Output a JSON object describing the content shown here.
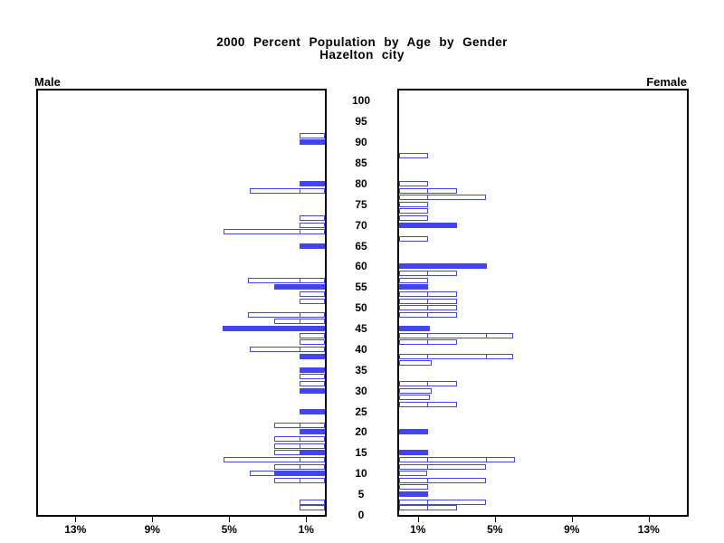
{
  "title": {
    "line1": "2000 Percent Population by Age by Gender",
    "line2": "Hazelton city"
  },
  "chart_data": {
    "type": "bar",
    "subtype": "population-pyramid",
    "title": "2000 Percent Population by Age by Gender",
    "subtitle": "Hazelton city",
    "left_panel_label": "Male",
    "right_panel_label": "Female",
    "age_axis": {
      "min": 0,
      "max": 100,
      "step": 5,
      "tick_labels": [
        "0",
        "5",
        "10",
        "15",
        "20",
        "25",
        "30",
        "35",
        "40",
        "45",
        "50",
        "55",
        "60",
        "65",
        "70",
        "75",
        "80",
        "85",
        "90",
        "95",
        "100"
      ]
    },
    "percent_axis": {
      "ticks": [
        1,
        5,
        9,
        13
      ],
      "tick_labels": [
        "1%",
        "5%",
        "9%",
        "13%"
      ],
      "max": 15
    },
    "colors": {
      "bar_blue": "#4444EE",
      "axis_black": "#000000",
      "background": "#FFFFFF"
    },
    "style_note": "solid = filled blue bar; outline = white bar with blue border; seg_marks = internal segment divider positions in percent",
    "bars": {
      "male": [
        {
          "age": 91.67,
          "pct": 1.3,
          "style": "outline"
        },
        {
          "age": 90.0,
          "pct": 1.3,
          "style": "solid"
        },
        {
          "age": 80.0,
          "pct": 1.3,
          "style": "solid"
        },
        {
          "age": 78.33,
          "pct": 3.9,
          "style": "outline",
          "seg_marks": [
            1.33
          ]
        },
        {
          "age": 71.67,
          "pct": 1.3,
          "style": "outline"
        },
        {
          "age": 70.0,
          "pct": 1.3,
          "style": "outline"
        },
        {
          "age": 68.33,
          "pct": 5.25,
          "style": "outline",
          "seg_marks": [
            1.33
          ]
        },
        {
          "age": 65.0,
          "pct": 1.3,
          "style": "solid"
        },
        {
          "age": 56.67,
          "pct": 4.0,
          "style": "outline",
          "seg_marks": [
            1.33
          ]
        },
        {
          "age": 55.0,
          "pct": 2.65,
          "style": "solid"
        },
        {
          "age": 53.33,
          "pct": 1.3,
          "style": "outline"
        },
        {
          "age": 51.67,
          "pct": 1.3,
          "style": "outline"
        },
        {
          "age": 48.33,
          "pct": 4.0,
          "style": "outline",
          "seg_marks": [
            1.33
          ]
        },
        {
          "age": 46.67,
          "pct": 2.65,
          "style": "outline",
          "seg_marks": [
            1.33
          ]
        },
        {
          "age": 45.0,
          "pct": 5.3,
          "style": "solid"
        },
        {
          "age": 43.33,
          "pct": 1.3,
          "style": "outline"
        },
        {
          "age": 41.67,
          "pct": 1.3,
          "style": "outline"
        },
        {
          "age": 40.0,
          "pct": 3.9,
          "style": "outline",
          "seg_marks": [
            1.33
          ]
        },
        {
          "age": 38.33,
          "pct": 1.3,
          "style": "solid"
        },
        {
          "age": 35.0,
          "pct": 1.3,
          "style": "solid"
        },
        {
          "age": 33.33,
          "pct": 1.3,
          "style": "outline"
        },
        {
          "age": 31.67,
          "pct": 1.3,
          "style": "outline"
        },
        {
          "age": 30.0,
          "pct": 1.3,
          "style": "solid"
        },
        {
          "age": 25.0,
          "pct": 1.3,
          "style": "solid"
        },
        {
          "age": 21.67,
          "pct": 2.65,
          "style": "outline",
          "seg_marks": [
            1.33
          ]
        },
        {
          "age": 20.0,
          "pct": 1.3,
          "style": "solid"
        },
        {
          "age": 18.33,
          "pct": 2.65,
          "style": "outline",
          "seg_marks": [
            1.33
          ]
        },
        {
          "age": 16.67,
          "pct": 2.65,
          "style": "outline",
          "seg_marks": [
            1.33
          ]
        },
        {
          "age": 15.0,
          "pct": 2.65,
          "style": "outline",
          "seg_marks": [
            1.33
          ]
        },
        {
          "age": 15.0,
          "pct": 1.3,
          "style": "solid"
        },
        {
          "age": 13.33,
          "pct": 5.25,
          "style": "outline",
          "seg_marks": [
            1.33
          ]
        },
        {
          "age": 11.67,
          "pct": 2.65,
          "style": "outline",
          "seg_marks": [
            1.33
          ]
        },
        {
          "age": 10.0,
          "pct": 3.9,
          "style": "outline",
          "seg_marks": [
            1.33
          ]
        },
        {
          "age": 10.0,
          "pct": 2.65,
          "style": "solid"
        },
        {
          "age": 8.33,
          "pct": 2.65,
          "style": "outline",
          "seg_marks": [
            1.33
          ]
        },
        {
          "age": 3.08,
          "pct": 1.3,
          "style": "outline"
        },
        {
          "age": 1.75,
          "pct": 1.3,
          "style": "outline"
        }
      ],
      "female": [
        {
          "age": 86.67,
          "pct": 1.5,
          "style": "outline"
        },
        {
          "age": 80.0,
          "pct": 1.5,
          "style": "outline"
        },
        {
          "age": 78.33,
          "pct": 3.0,
          "style": "outline",
          "seg_marks": [
            1.44
          ]
        },
        {
          "age": 76.67,
          "pct": 4.5,
          "style": "outline",
          "seg_marks": [
            1.44
          ]
        },
        {
          "age": 75.0,
          "pct": 1.5,
          "style": "outline"
        },
        {
          "age": 73.33,
          "pct": 1.5,
          "style": "outline"
        },
        {
          "age": 71.67,
          "pct": 1.5,
          "style": "outline"
        },
        {
          "age": 70.0,
          "pct": 3.0,
          "style": "solid"
        },
        {
          "age": 66.67,
          "pct": 1.5,
          "style": "outline"
        },
        {
          "age": 60.0,
          "pct": 4.55,
          "style": "solid"
        },
        {
          "age": 58.33,
          "pct": 3.0,
          "style": "outline",
          "seg_marks": [
            1.44
          ]
        },
        {
          "age": 56.67,
          "pct": 1.5,
          "style": "outline"
        },
        {
          "age": 55.0,
          "pct": 1.5,
          "style": "solid"
        },
        {
          "age": 53.33,
          "pct": 3.0,
          "style": "outline",
          "seg_marks": [
            1.44
          ]
        },
        {
          "age": 51.67,
          "pct": 3.0,
          "style": "outline",
          "seg_marks": [
            1.44
          ]
        },
        {
          "age": 50.0,
          "pct": 3.0,
          "style": "outline",
          "seg_marks": [
            1.44
          ]
        },
        {
          "age": 48.33,
          "pct": 3.0,
          "style": "outline",
          "seg_marks": [
            1.44
          ]
        },
        {
          "age": 45.0,
          "pct": 1.6,
          "style": "solid"
        },
        {
          "age": 43.33,
          "pct": 5.95,
          "style": "outline",
          "seg_marks": [
            1.44,
            4.5
          ]
        },
        {
          "age": 41.67,
          "pct": 3.0,
          "style": "outline",
          "seg_marks": [
            1.44
          ]
        },
        {
          "age": 38.33,
          "pct": 5.95,
          "style": "outline",
          "seg_marks": [
            1.44,
            4.5
          ]
        },
        {
          "age": 36.67,
          "pct": 1.7,
          "style": "outline"
        },
        {
          "age": 31.67,
          "pct": 3.0,
          "style": "outline",
          "seg_marks": [
            1.44
          ]
        },
        {
          "age": 30.0,
          "pct": 1.7,
          "style": "outline"
        },
        {
          "age": 28.33,
          "pct": 1.6,
          "style": "outline"
        },
        {
          "age": 26.67,
          "pct": 3.0,
          "style": "outline",
          "seg_marks": [
            1.44
          ]
        },
        {
          "age": 20.0,
          "pct": 1.5,
          "style": "solid"
        },
        {
          "age": 15.0,
          "pct": 1.5,
          "style": "solid"
        },
        {
          "age": 13.33,
          "pct": 6.0,
          "style": "outline",
          "seg_marks": [
            1.44,
            4.5
          ]
        },
        {
          "age": 11.67,
          "pct": 4.5,
          "style": "outline",
          "seg_marks": [
            1.44
          ]
        },
        {
          "age": 10.0,
          "pct": 1.44,
          "style": "outline"
        },
        {
          "age": 8.33,
          "pct": 4.5,
          "style": "outline",
          "seg_marks": [
            1.44
          ]
        },
        {
          "age": 6.67,
          "pct": 1.5,
          "style": "outline"
        },
        {
          "age": 5.0,
          "pct": 1.5,
          "style": "solid"
        },
        {
          "age": 3.08,
          "pct": 4.5,
          "style": "outline",
          "seg_marks": [
            1.44
          ]
        },
        {
          "age": 1.75,
          "pct": 3.0,
          "style": "outline",
          "seg_marks": [
            1.44
          ]
        }
      ]
    }
  }
}
